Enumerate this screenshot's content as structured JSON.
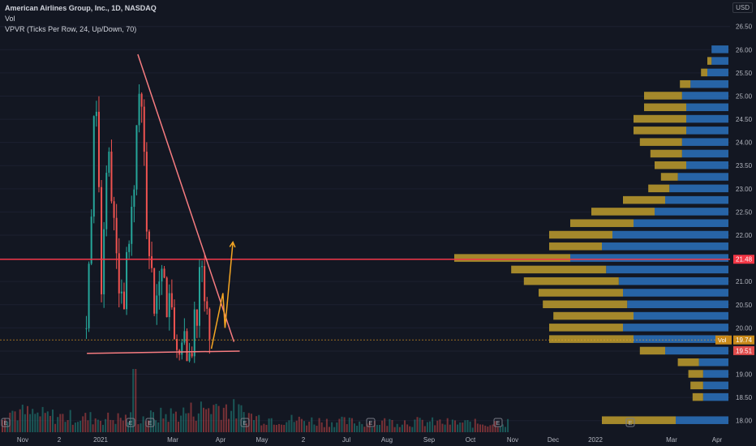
{
  "header": {
    "title": "American Airlines Group, Inc., 1D, NASDAQ",
    "volume_label": "Vol",
    "vpvr_label": "VPVR (Ticks Per Row, 24, Up/Down, 70)",
    "currency": "USD"
  },
  "colors": {
    "background": "#131722",
    "up": "#26a69a",
    "down": "#ef5350",
    "trendline": "#f77c80",
    "resistance": "#f23645",
    "projection": "#f5a623",
    "vpvr_up": "#2a6db5",
    "vpvr_down": "#b5952c",
    "axis_text": "#b2b5be"
  },
  "chart_data": {
    "type": "candlestick",
    "y_axis": {
      "min": 17.75,
      "max": 26.6,
      "ticks": [
        "18.00",
        "18.50",
        "19.00",
        "19.50",
        "20.00",
        "20.50",
        "21.00",
        "21.50",
        "22.00",
        "22.50",
        "23.00",
        "23.50",
        "24.00",
        "24.50",
        "25.00",
        "25.50",
        "26.00",
        "26.50"
      ]
    },
    "x_axis": {
      "ticks": [
        "Nov",
        "2",
        "2021",
        "Mar",
        "Apr",
        "May",
        "2",
        "Jul",
        "Aug",
        "Sep",
        "Oct",
        "Nov",
        "Dec",
        "2022",
        "Mar",
        "Apr"
      ]
    },
    "price_path": [
      [
        "2021-02-24",
        20.0
      ],
      [
        "2021-03-05",
        22.5
      ],
      [
        "2021-03-12",
        25.5
      ],
      [
        "2021-03-18",
        24.0
      ],
      [
        "2021-03-24",
        21.0
      ],
      [
        "2021-03-31",
        22.0
      ],
      [
        "2021-04-06",
        24.3
      ],
      [
        "2021-04-15",
        22.5
      ],
      [
        "2021-04-22",
        21.5
      ],
      [
        "2021-05-06",
        20.5
      ],
      [
        "2021-05-14",
        21.9
      ],
      [
        "2021-05-26",
        23.0
      ],
      [
        "2021-06-03",
        25.8
      ],
      [
        "2021-06-11",
        24.0
      ],
      [
        "2021-06-21",
        22.0
      ],
      [
        "2021-07-01",
        20.5
      ],
      [
        "2021-07-14",
        21.0
      ],
      [
        "2021-07-23",
        21.3
      ],
      [
        "2021-07-29",
        20.2
      ],
      [
        "2021-08-06",
        20.5
      ],
      [
        "2021-08-17",
        19.3
      ],
      [
        "2021-08-25",
        20.0
      ],
      [
        "2021-09-03",
        19.4
      ],
      [
        "2021-09-14",
        19.8
      ],
      [
        "2021-09-23",
        20.3
      ],
      [
        "2021-10-01",
        21.5
      ],
      [
        "2021-10-08",
        20.7
      ],
      [
        "2021-10-15",
        20.0
      ],
      [
        "2021-10-20",
        19.5
      ]
    ],
    "volume_shape": [
      0.45,
      0.35,
      0.3,
      0.28,
      0.3,
      0.4,
      0.55,
      0.3,
      0.25,
      0.22,
      0.2,
      0.22,
      0.2,
      0.18,
      0.2
    ],
    "horizontal_levels": [
      {
        "price": 21.48,
        "label": "21.48",
        "role": "resistance"
      },
      {
        "price": 19.74,
        "label": "19.74",
        "role": "price"
      },
      {
        "price": 19.51,
        "label": "19.51",
        "role": "support"
      }
    ],
    "vpvr_tag": "Vol",
    "trendline_points": [
      [
        "2021-06-02",
        25.9
      ],
      [
        "2021-12-02",
        19.7
      ]
    ],
    "support_points": [
      [
        "2021-02-25",
        19.45
      ],
      [
        "2021-12-13",
        19.5
      ]
    ],
    "projection_points": [
      [
        "2021-10-20",
        19.55
      ],
      [
        "2021-11-11",
        20.75
      ],
      [
        "2021-11-15",
        20.0
      ],
      [
        "2021-11-30",
        21.85
      ]
    ],
    "vpvr_rows": [
      {
        "price": 18.0,
        "up": 0.25,
        "down": 0.35
      },
      {
        "price": 18.5,
        "up": 0.12,
        "down": 0.05
      },
      {
        "price": 18.75,
        "up": 0.12,
        "down": 0.06
      },
      {
        "price": 19.0,
        "up": 0.12,
        "down": 0.07
      },
      {
        "price": 19.25,
        "up": 0.14,
        "down": 0.1
      },
      {
        "price": 19.5,
        "up": 0.3,
        "down": 0.12
      },
      {
        "price": 19.75,
        "up": 0.45,
        "down": 0.4
      },
      {
        "price": 20.0,
        "up": 0.5,
        "down": 0.35
      },
      {
        "price": 20.25,
        "up": 0.45,
        "down": 0.38
      },
      {
        "price": 20.5,
        "up": 0.48,
        "down": 0.4
      },
      {
        "price": 20.75,
        "up": 0.5,
        "down": 0.4
      },
      {
        "price": 21.0,
        "up": 0.52,
        "down": 0.45
      },
      {
        "price": 21.25,
        "up": 0.58,
        "down": 0.45
      },
      {
        "price": 21.5,
        "up": 0.75,
        "down": 0.55
      },
      {
        "price": 21.75,
        "up": 0.6,
        "down": 0.25
      },
      {
        "price": 22.0,
        "up": 0.55,
        "down": 0.3
      },
      {
        "price": 22.25,
        "up": 0.45,
        "down": 0.3
      },
      {
        "price": 22.5,
        "up": 0.35,
        "down": 0.3
      },
      {
        "price": 22.75,
        "up": 0.3,
        "down": 0.2
      },
      {
        "price": 23.0,
        "up": 0.28,
        "down": 0.1
      },
      {
        "price": 23.25,
        "up": 0.24,
        "down": 0.08
      },
      {
        "price": 23.5,
        "up": 0.2,
        "down": 0.15
      },
      {
        "price": 23.75,
        "up": 0.22,
        "down": 0.15
      },
      {
        "price": 24.0,
        "up": 0.22,
        "down": 0.2
      },
      {
        "price": 24.25,
        "up": 0.2,
        "down": 0.25
      },
      {
        "price": 24.5,
        "up": 0.2,
        "down": 0.25
      },
      {
        "price": 24.75,
        "up": 0.2,
        "down": 0.2
      },
      {
        "price": 25.0,
        "up": 0.22,
        "down": 0.18
      },
      {
        "price": 25.25,
        "up": 0.18,
        "down": 0.05
      },
      {
        "price": 25.5,
        "up": 0.1,
        "down": 0.03
      },
      {
        "price": 25.75,
        "up": 0.08,
        "down": 0.02
      },
      {
        "price": 26.0,
        "up": 0.08,
        "down": 0.0
      }
    ]
  }
}
